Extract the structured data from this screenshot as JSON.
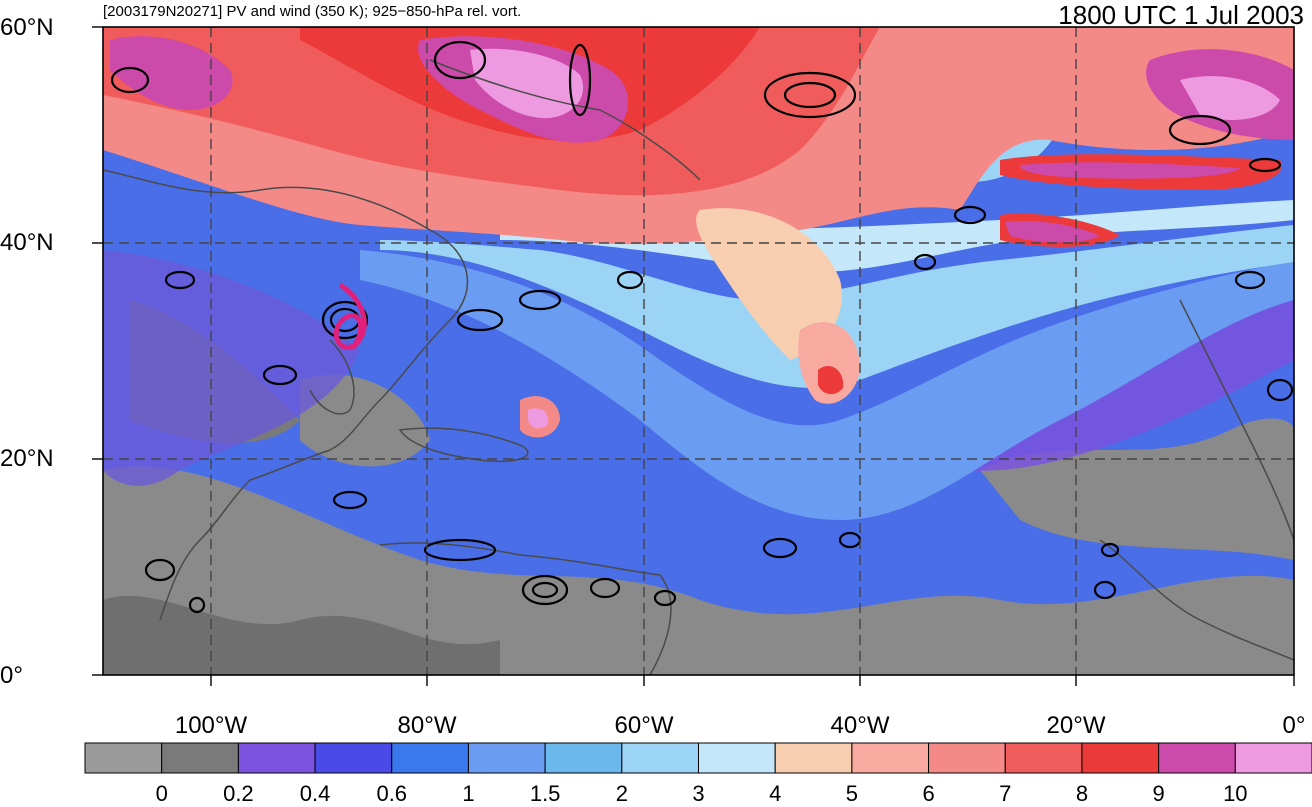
{
  "title_left": "[2003179N20271] PV and wind (350 K); 925−850-hPa rel. vort.",
  "title_right": "1800 UTC 1 Jul 2003",
  "lat_labels": [
    "60°N",
    "40°N",
    "20°N",
    "0°"
  ],
  "lon_labels": [
    "100°W",
    "80°W",
    "60°W",
    "40°W",
    "20°W",
    "0°"
  ],
  "colorbar": {
    "colors": [
      "#9b9b9b",
      "#7a7a7a",
      "#7a52de",
      "#4a4ae6",
      "#3a78ee",
      "#6a9cf2",
      "#6ab8ec",
      "#9cd4f6",
      "#c4e8fa",
      "#f8ceb0",
      "#f8aaa0",
      "#f48a88",
      "#f05c5c",
      "#ec3a3a",
      "#cc4aaa",
      "#ee9ae0"
    ],
    "labels": [
      "0",
      "0.2",
      "0.4",
      "0.6",
      "1",
      "1.5",
      "2",
      "3",
      "4",
      "5",
      "6",
      "7",
      "8",
      "9",
      "10"
    ]
  },
  "map": {
    "extent_lon": [
      -110,
      0
    ],
    "extent_lat": [
      0,
      60
    ],
    "gridlines_lon": [
      -100,
      -80,
      -60,
      -40,
      -20
    ],
    "gridlines_lat": [
      20,
      40
    ],
    "storm_marker_color": "#e0207a"
  }
}
